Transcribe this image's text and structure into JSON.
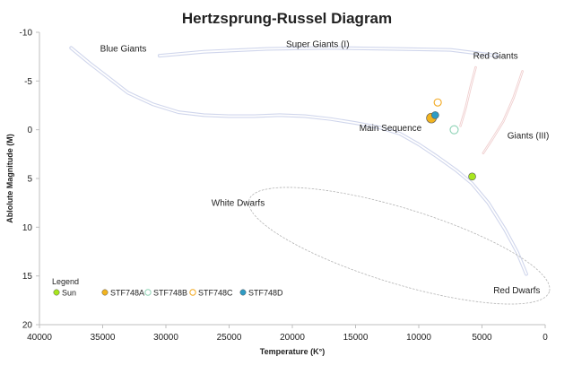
{
  "chart_data": {
    "type": "scatter",
    "title": "Hertzsprung-Russel Diagram",
    "xlabel": "Temperature (K°)",
    "ylabel": "Ablolute Magnitude (M)",
    "xlim": [
      40000,
      0
    ],
    "ylim": [
      -10,
      20
    ],
    "x_reversed": true,
    "y_reversed": true,
    "x_ticks": [
      40000,
      35000,
      30000,
      25000,
      20000,
      15000,
      10000,
      5000,
      0
    ],
    "y_ticks": [
      -10,
      -5,
      0,
      5,
      10,
      15,
      20
    ],
    "grid": false,
    "legend": {
      "title": "Legend",
      "position": "bottom-left"
    },
    "series": [
      {
        "name": "Sun",
        "color": "#a8e61d",
        "fill": true,
        "points": [
          {
            "x": 5778,
            "y": 4.8
          }
        ]
      },
      {
        "name": "STF748A",
        "color": "#f2b41f",
        "fill": true,
        "points": [
          {
            "x": 9000,
            "y": -1.2
          }
        ]
      },
      {
        "name": "STF748B",
        "color": "#8fd3b6",
        "fill": false,
        "points": [
          {
            "x": 7200,
            "y": 0.0
          }
        ]
      },
      {
        "name": "STF748C",
        "color": "#f2a81f",
        "fill": false,
        "points": [
          {
            "x": 8500,
            "y": -2.8
          }
        ]
      },
      {
        "name": "STF748D",
        "color": "#2e9bc4",
        "fill": true,
        "points": [
          {
            "x": 8700,
            "y": -1.5
          }
        ]
      }
    ],
    "region_labels": [
      "Blue Giants",
      "Super Giants (I)",
      "Red Giants",
      "Main Sequence",
      "Giants (III)",
      "White Dwarfs",
      "Red Dwarfs"
    ],
    "region_colors": {
      "main_sequence": "#aab4dc",
      "super_giants": "#aab4dc",
      "red_giants": "#e3a7a7",
      "white_dwarfs": "#b4b4b4"
    }
  }
}
